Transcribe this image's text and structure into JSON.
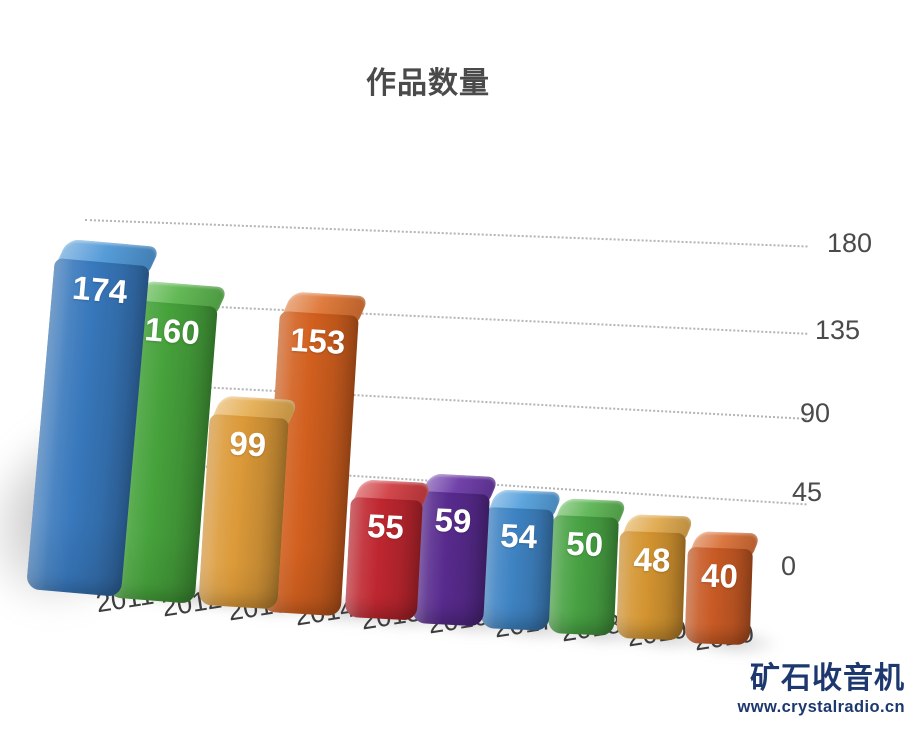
{
  "title": "作品数量",
  "chart_data": {
    "type": "bar",
    "projection": "3d-perspective",
    "title": "作品数量",
    "categories": [
      "2011",
      "2012",
      "2013",
      "2014",
      "2015",
      "2016",
      "2017",
      "2018",
      "2019",
      "2020"
    ],
    "values": [
      174,
      160,
      99,
      153,
      55,
      59,
      54,
      50,
      48,
      40
    ],
    "bar_colors": [
      "#3878bc",
      "#47a33c",
      "#dc9a39",
      "#d2601f",
      "#bf2730",
      "#582b8e",
      "#3f84c4",
      "#48a243",
      "#d49531",
      "#c85a25"
    ],
    "bar_cap_colors": [
      "#4e97d6",
      "#5cb64e",
      "#e5ad52",
      "#dd7433",
      "#cf3d42",
      "#6a39a6",
      "#55a0dc",
      "#5db554",
      "#e0a94d",
      "#d86f37"
    ],
    "value_label_color": "#ffffff",
    "yticks": [
      180,
      135,
      90,
      45,
      0
    ],
    "ylim": [
      0,
      180
    ],
    "ytick_side": "right",
    "gridlines": "dotted",
    "gridline_color": "#b4b4b4",
    "legend": "none",
    "background": "#ffffff"
  },
  "watermark": {
    "site_name": "矿石收音机",
    "site_url": "www.crystalradio.cn",
    "color": "#1c386e"
  }
}
